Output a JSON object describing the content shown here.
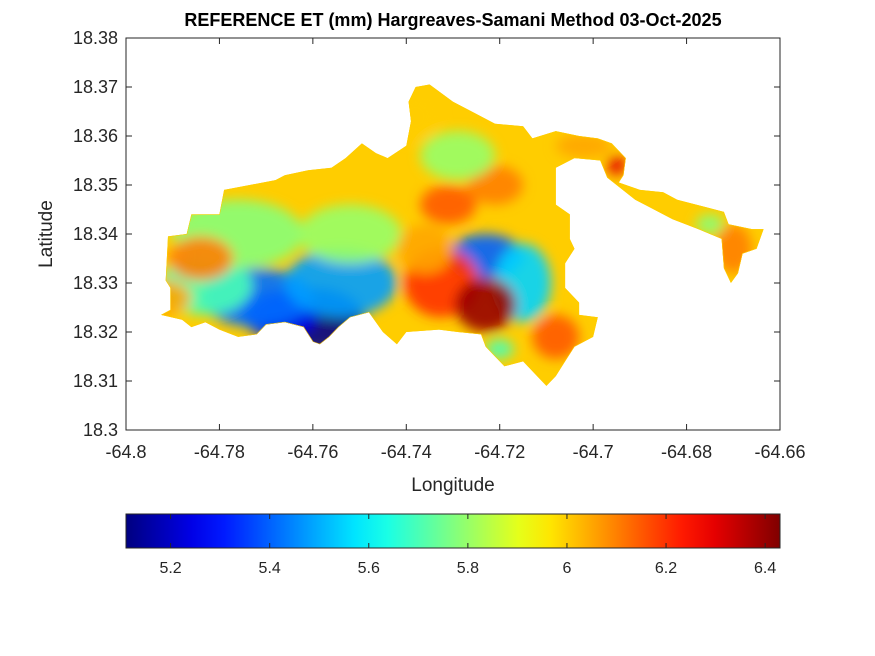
{
  "chart_data": {
    "type": "heatmap",
    "title": "REFERENCE ET (mm) Hargreaves-Samani Method  03-Oct-2025",
    "xlabel": "Longitude",
    "ylabel": "Latitude",
    "xlim": [
      -64.8,
      -64.66
    ],
    "ylim": [
      18.3,
      18.38
    ],
    "xticks": [
      -64.8,
      -64.78,
      -64.76,
      -64.74,
      -64.72,
      -64.7,
      -64.68,
      -64.66
    ],
    "yticks": [
      18.3,
      18.31,
      18.32,
      18.33,
      18.34,
      18.35,
      18.36,
      18.37,
      18.38
    ],
    "xtick_labels": [
      "-64.8",
      "-64.78",
      "-64.76",
      "-64.74",
      "-64.72",
      "-64.7",
      "-64.68",
      "-64.66"
    ],
    "ytick_labels": [
      "18.3",
      "18.31",
      "18.32",
      "18.33",
      "18.34",
      "18.35",
      "18.36",
      "18.37",
      "18.38"
    ],
    "colormap": "jet",
    "colorbar": {
      "orientation": "horizontal",
      "location": "bottom",
      "range": [
        5.11,
        6.43
      ],
      "ticks": [
        5.2,
        5.4,
        5.6,
        5.8,
        6.0,
        6.2,
        6.4
      ],
      "tick_labels": [
        "5.2",
        "5.4",
        "5.6",
        "5.8",
        "6",
        "6.2",
        "6.4"
      ]
    },
    "grid": false,
    "field_outline": [
      [
        -64.7925,
        18.3235
      ],
      [
        -64.7905,
        18.3245
      ],
      [
        -64.7905,
        18.329
      ],
      [
        -64.7915,
        18.3305
      ],
      [
        -64.791,
        18.3395
      ],
      [
        -64.787,
        18.34
      ],
      [
        -64.786,
        18.344
      ],
      [
        -64.78,
        18.344
      ],
      [
        -64.779,
        18.349
      ],
      [
        -64.7735,
        18.35
      ],
      [
        -64.768,
        18.351
      ],
      [
        -64.766,
        18.352
      ],
      [
        -64.761,
        18.353
      ],
      [
        -64.756,
        18.3535
      ],
      [
        -64.753,
        18.3555
      ],
      [
        -64.7495,
        18.3585
      ],
      [
        -64.7465,
        18.3565
      ],
      [
        -64.744,
        18.3555
      ],
      [
        -64.74,
        18.358
      ],
      [
        -64.739,
        18.363
      ],
      [
        -64.7395,
        18.367
      ],
      [
        -64.738,
        18.37
      ],
      [
        -64.735,
        18.3705
      ],
      [
        -64.73,
        18.367
      ],
      [
        -64.726,
        18.365
      ],
      [
        -64.721,
        18.3625
      ],
      [
        -64.715,
        18.362
      ],
      [
        -64.713,
        18.3595
      ],
      [
        -64.708,
        18.361
      ],
      [
        -64.703,
        18.36
      ],
      [
        -64.699,
        18.3595
      ],
      [
        -64.696,
        18.3585
      ],
      [
        -64.6945,
        18.357
      ],
      [
        -64.693,
        18.3555
      ],
      [
        -64.6935,
        18.352
      ],
      [
        -64.6945,
        18.3505
      ],
      [
        -64.69,
        18.349
      ],
      [
        -64.685,
        18.3485
      ],
      [
        -64.682,
        18.347
      ],
      [
        -64.676,
        18.3455
      ],
      [
        -64.672,
        18.3445
      ],
      [
        -64.671,
        18.342
      ],
      [
        -64.666,
        18.341
      ],
      [
        -64.6635,
        18.341
      ],
      [
        -64.665,
        18.337
      ],
      [
        -64.668,
        18.336
      ],
      [
        -64.669,
        18.332
      ],
      [
        -64.6705,
        18.33
      ],
      [
        -64.672,
        18.333
      ],
      [
        -64.6725,
        18.339
      ],
      [
        -64.6775,
        18.341
      ],
      [
        -64.683,
        18.343
      ],
      [
        -64.686,
        18.3445
      ],
      [
        -64.688,
        18.3455
      ],
      [
        -64.691,
        18.347
      ],
      [
        -64.697,
        18.3515
      ],
      [
        -64.6985,
        18.355
      ],
      [
        -64.704,
        18.3555
      ],
      [
        -64.708,
        18.3535
      ],
      [
        -64.708,
        18.346
      ],
      [
        -64.705,
        18.344
      ],
      [
        -64.705,
        18.339
      ],
      [
        -64.704,
        18.337
      ],
      [
        -64.706,
        18.334
      ],
      [
        -64.706,
        18.329
      ],
      [
        -64.703,
        18.326
      ],
      [
        -64.703,
        18.3235
      ],
      [
        -64.699,
        18.323
      ],
      [
        -64.7,
        18.319
      ],
      [
        -64.704,
        18.317
      ],
      [
        -64.706,
        18.314
      ],
      [
        -64.708,
        18.311
      ],
      [
        -64.71,
        18.309
      ],
      [
        -64.712,
        18.311
      ],
      [
        -64.715,
        18.314
      ],
      [
        -64.719,
        18.313
      ],
      [
        -64.721,
        18.315
      ],
      [
        -64.723,
        18.317
      ],
      [
        -64.724,
        18.3195
      ],
      [
        -64.729,
        18.32
      ],
      [
        -64.733,
        18.3205
      ],
      [
        -64.74,
        18.32
      ],
      [
        -64.742,
        18.3175
      ],
      [
        -64.745,
        18.32
      ],
      [
        -64.748,
        18.324
      ],
      [
        -64.752,
        18.323
      ],
      [
        -64.7545,
        18.321
      ],
      [
        -64.7565,
        18.319
      ],
      [
        -64.7585,
        18.3175
      ],
      [
        -64.76,
        18.318
      ],
      [
        -64.762,
        18.321
      ],
      [
        -64.766,
        18.322
      ],
      [
        -64.77,
        18.3215
      ],
      [
        -64.772,
        18.3195
      ],
      [
        -64.776,
        18.319
      ],
      [
        -64.78,
        18.3205
      ],
      [
        -64.783,
        18.322
      ],
      [
        -64.786,
        18.321
      ],
      [
        -64.788,
        18.3225
      ],
      [
        -64.7925,
        18.3235
      ]
    ],
    "field_hotspots": [
      {
        "lon": -64.76,
        "lat": 18.3225,
        "value": 5.12,
        "r_lon": 0.011,
        "r_lat": 0.0065
      },
      {
        "lon": -64.767,
        "lat": 18.3235,
        "value": 5.25,
        "r_lon": 0.008,
        "r_lat": 0.005
      },
      {
        "lon": -64.772,
        "lat": 18.327,
        "value": 5.42,
        "r_lon": 0.012,
        "r_lat": 0.006
      },
      {
        "lon": -64.783,
        "lat": 18.3295,
        "value": 5.7,
        "r_lon": 0.01,
        "r_lat": 0.006
      },
      {
        "lon": -64.754,
        "lat": 18.33,
        "value": 5.48,
        "r_lon": 0.012,
        "r_lat": 0.007
      },
      {
        "lon": -64.776,
        "lat": 18.34,
        "value": 5.78,
        "r_lon": 0.014,
        "r_lat": 0.007
      },
      {
        "lon": -64.752,
        "lat": 18.34,
        "value": 5.8,
        "r_lon": 0.011,
        "r_lat": 0.006
      },
      {
        "lon": -64.723,
        "lat": 18.3355,
        "value": 5.4,
        "r_lon": 0.008,
        "r_lat": 0.0045
      },
      {
        "lon": -64.715,
        "lat": 18.33,
        "value": 5.55,
        "r_lon": 0.006,
        "r_lat": 0.008
      },
      {
        "lon": -64.7325,
        "lat": 18.33,
        "value": 6.2,
        "r_lon": 0.008,
        "r_lat": 0.007
      },
      {
        "lon": -64.723,
        "lat": 18.3255,
        "value": 6.4,
        "r_lon": 0.0065,
        "r_lat": 0.0055
      },
      {
        "lon": -64.736,
        "lat": 18.337,
        "value": 6.05,
        "r_lon": 0.006,
        "r_lat": 0.005
      },
      {
        "lon": -64.731,
        "lat": 18.346,
        "value": 6.15,
        "r_lon": 0.006,
        "r_lat": 0.004
      },
      {
        "lon": -64.721,
        "lat": 18.35,
        "value": 6.1,
        "r_lon": 0.006,
        "r_lat": 0.004
      },
      {
        "lon": -64.729,
        "lat": 18.356,
        "value": 5.8,
        "r_lon": 0.008,
        "r_lat": 0.005
      },
      {
        "lon": -64.738,
        "lat": 18.364,
        "value": 6.0,
        "r_lon": 0.005,
        "r_lat": 0.005
      },
      {
        "lon": -64.708,
        "lat": 18.319,
        "value": 6.15,
        "r_lon": 0.005,
        "r_lat": 0.0045
      },
      {
        "lon": -64.784,
        "lat": 18.335,
        "value": 6.1,
        "r_lon": 0.007,
        "r_lat": 0.0045
      },
      {
        "lon": -64.794,
        "lat": 18.327,
        "value": 6.05,
        "r_lon": 0.008,
        "r_lat": 0.004
      },
      {
        "lon": -64.702,
        "lat": 18.358,
        "value": 6.05,
        "r_lon": 0.006,
        "r_lat": 0.0025
      },
      {
        "lon": -64.67,
        "lat": 18.337,
        "value": 6.1,
        "r_lon": 0.004,
        "r_lat": 0.005
      },
      {
        "lon": -64.675,
        "lat": 18.342,
        "value": 5.78,
        "r_lon": 0.003,
        "r_lat": 0.002
      },
      {
        "lon": -64.695,
        "lat": 18.354,
        "value": 6.3,
        "r_lon": 0.002,
        "r_lat": 0.002
      },
      {
        "lon": -64.72,
        "lat": 18.3165,
        "value": 5.7,
        "r_lon": 0.003,
        "r_lat": 0.002
      }
    ],
    "background_value": 6.0
  }
}
